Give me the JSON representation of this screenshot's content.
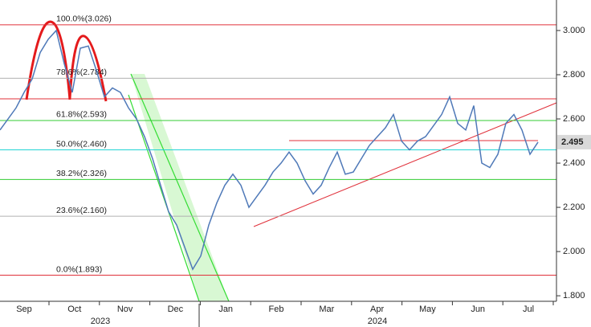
{
  "chart_data": {
    "type": "line",
    "values": [
      2.55,
      2.6,
      2.65,
      2.72,
      2.78,
      2.9,
      2.96,
      3.0,
      2.85,
      2.72,
      2.92,
      2.93,
      2.82,
      2.7,
      2.74,
      2.72,
      2.65,
      2.6,
      2.52,
      2.42,
      2.3,
      2.18,
      2.12,
      2.02,
      1.92,
      1.98,
      2.12,
      2.22,
      2.3,
      2.35,
      2.3,
      2.2,
      2.25,
      2.3,
      2.36,
      2.4,
      2.45,
      2.4,
      2.32,
      2.26,
      2.3,
      2.38,
      2.45,
      2.35,
      2.36,
      2.42,
      2.48,
      2.52,
      2.56,
      2.62,
      2.5,
      2.46,
      2.5,
      2.52,
      2.57,
      2.62,
      2.7,
      2.58,
      2.55,
      2.66,
      2.4,
      2.38,
      2.44,
      2.58,
      2.62,
      2.55,
      2.44,
      2.495
    ],
    "color": "#4f79b8",
    "x_labels": [
      "Sep",
      "Oct",
      "Nov",
      "Dec",
      "Jan",
      "Feb",
      "Mar",
      "Apr",
      "May",
      "Jun",
      "Jul"
    ],
    "year_labels": [
      "2023",
      "2024"
    ],
    "ylim": [
      1.775,
      3.138
    ],
    "yticks": [
      {
        "value": 1.8,
        "label": "1.800"
      },
      {
        "value": 2.0,
        "label": "2.000"
      },
      {
        "value": 2.2,
        "label": "2.200"
      },
      {
        "value": 2.4,
        "label": "2.400"
      },
      {
        "value": 2.6,
        "label": "2.600"
      },
      {
        "value": 2.8,
        "label": "2.800"
      },
      {
        "value": 3.0,
        "label": "3.000"
      }
    ],
    "last_price": 2.495,
    "fib_levels": [
      {
        "label": "100.0%(3.026)",
        "value": 3.026,
        "color": "#e0303a"
      },
      {
        "label": "78.6%(2.784)",
        "value": 2.784,
        "color": "#b0b0b0"
      },
      {
        "label": "61.8%(2.593)",
        "value": 2.593,
        "color": "#33cc33"
      },
      {
        "label": "50.0%(2.460)",
        "value": 2.46,
        "color": "#22d4d4"
      },
      {
        "label": "38.2%(2.326)",
        "value": 2.326,
        "color": "#33cc33"
      },
      {
        "label": "23.6%(2.160)",
        "value": 2.16,
        "color": "#b0b0b0"
      },
      {
        "label": "0.0%(1.893)",
        "value": 1.893,
        "color": "#e0303a"
      }
    ]
  }
}
